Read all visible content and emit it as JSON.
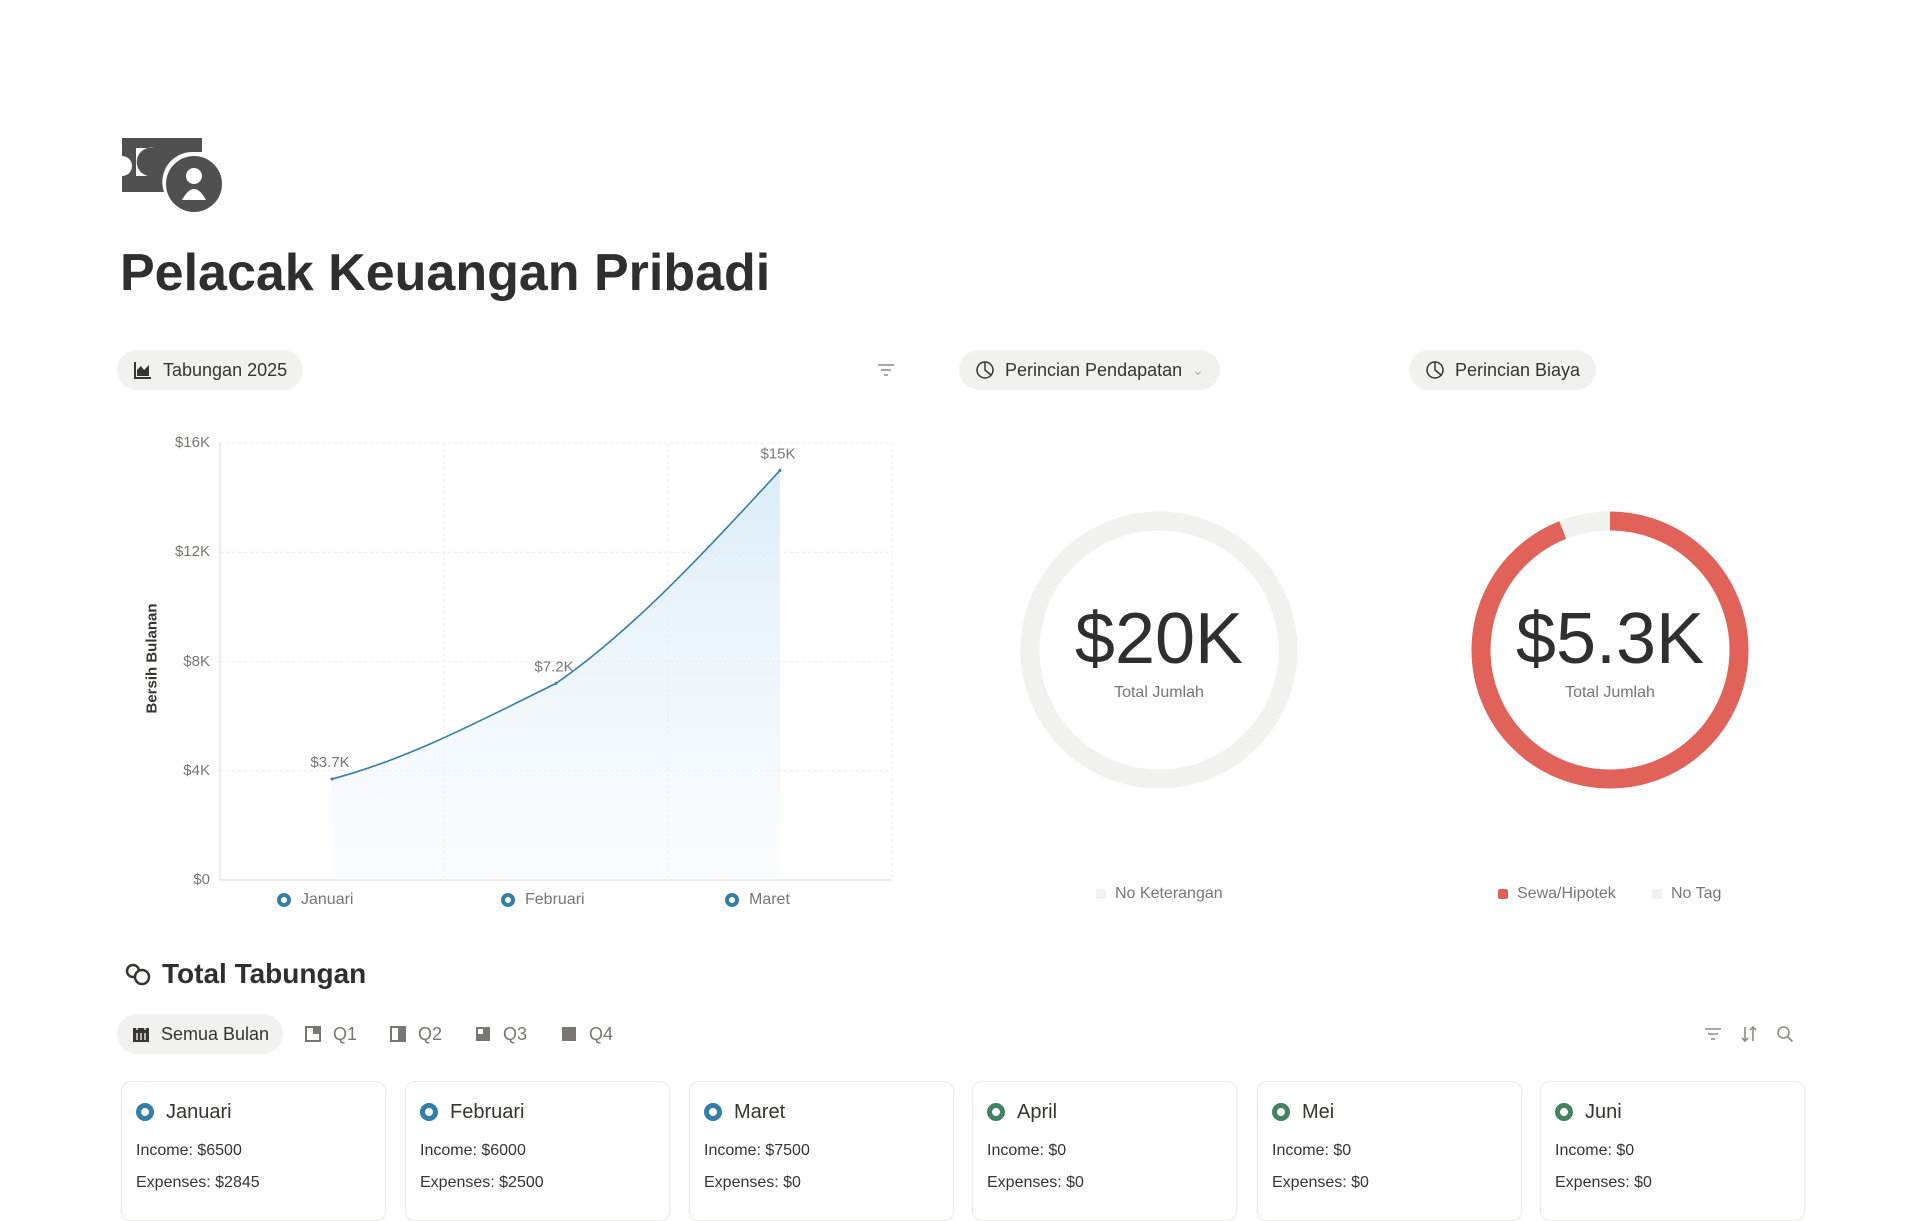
{
  "page": {
    "title": "Pelacak Keuangan Pribadi",
    "icon": "money-bill-icon"
  },
  "savings_chart": {
    "label": "Tabungan 2025",
    "icon": "area-chart-icon",
    "filter_icon": "filter-icon"
  },
  "income_breakdown": {
    "label": "Perincian Pendapatan",
    "icon": "pie-chart-icon",
    "value": "$20K",
    "sub": "Total Jumlah",
    "legend": [
      {
        "label": "No Keterangan",
        "color": "#f1f1ef"
      }
    ],
    "slices": [
      {
        "label": "No Keterangan",
        "fraction": 1.0,
        "color": "#f1f1ef"
      }
    ]
  },
  "expense_breakdown": {
    "label": "Perincian Biaya",
    "icon": "pie-chart-icon",
    "value": "$5.3K",
    "sub": "Total Jumlah",
    "legend": [
      {
        "label": "Sewa/Hipotek",
        "color": "#e16259"
      },
      {
        "label": "No Tag",
        "color": "#f1f1ef"
      }
    ],
    "slices": [
      {
        "label": "Sewa/Hipotek",
        "fraction": 0.94,
        "color": "#e16259"
      },
      {
        "label": "No Tag",
        "fraction": 0.06,
        "color": "#f1f1ef"
      }
    ]
  },
  "chart_data": {
    "type": "area",
    "categories": [
      "Januari",
      "Februari",
      "Maret"
    ],
    "series": [
      {
        "values": [
          3700,
          7200,
          15000
        ],
        "labels": [
          "$3.7K",
          "$7.2K",
          "$15K"
        ],
        "color": "#337ea9"
      }
    ],
    "ylabel": "Bersih Bulanan",
    "ylim": [
      0,
      16000
    ],
    "yticks": [
      {
        "v": 0,
        "t": "$0"
      },
      {
        "v": 4000,
        "t": "$4K"
      },
      {
        "v": 8000,
        "t": "$8K"
      },
      {
        "v": 12000,
        "t": "$12K"
      },
      {
        "v": 16000,
        "t": "$16K"
      }
    ],
    "grid": true,
    "legend": "bottom"
  },
  "total": {
    "title": "Total Tabungan",
    "icon": "coins-icon",
    "tabs": [
      {
        "label": "Semua Bulan",
        "icon": "calendar-icon"
      },
      {
        "label": "Q1",
        "icon": "q1-icon"
      },
      {
        "label": "Q2",
        "icon": "q2-icon"
      },
      {
        "label": "Q3",
        "icon": "q3-icon"
      },
      {
        "label": "Q4",
        "icon": "q4-icon"
      }
    ],
    "tools": [
      "filter-icon",
      "sort-icon",
      "search-icon"
    ],
    "cards": [
      {
        "name": "Januari",
        "income": "Income: $6500",
        "expenses": "Expenses: $2845",
        "color": "#337ea9"
      },
      {
        "name": "Februari",
        "income": "Income: $6000",
        "expenses": "Expenses: $2500",
        "color": "#337ea9"
      },
      {
        "name": "Maret",
        "income": "Income: $7500",
        "expenses": "Expenses: $0",
        "color": "#337ea9"
      },
      {
        "name": "April",
        "income": "Income: $0",
        "expenses": "Expenses: $0",
        "color": "#448361"
      },
      {
        "name": "Mei",
        "income": "Income: $0",
        "expenses": "Expenses: $0",
        "color": "#448361"
      },
      {
        "name": "Juni",
        "income": "Income: $0",
        "expenses": "Expenses: $0",
        "color": "#448361"
      }
    ]
  }
}
